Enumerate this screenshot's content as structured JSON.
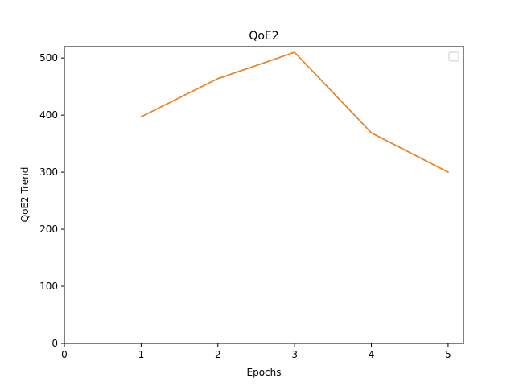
{
  "chart_data": {
    "type": "line",
    "title": "QoE2",
    "xlabel": "Epochs",
    "ylabel": "QoE2 Trend",
    "xlim": [
      0,
      5.2
    ],
    "ylim": [
      0,
      520
    ],
    "xticks": [
      0,
      1,
      2,
      3,
      4,
      5
    ],
    "yticks": [
      0,
      100,
      200,
      300,
      400,
      500
    ],
    "grid": false,
    "legend": {
      "location": "upper-right",
      "entries": []
    },
    "series": [
      {
        "x": [
          1,
          2,
          3,
          4,
          5
        ],
        "values": [
          397,
          464,
          510,
          369,
          300
        ],
        "color": "#1f77b4"
      },
      {
        "x": [
          1,
          2,
          3,
          4,
          5
        ],
        "values": [
          397,
          464,
          510,
          369,
          300
        ],
        "color": "#ff7f0e"
      }
    ]
  }
}
